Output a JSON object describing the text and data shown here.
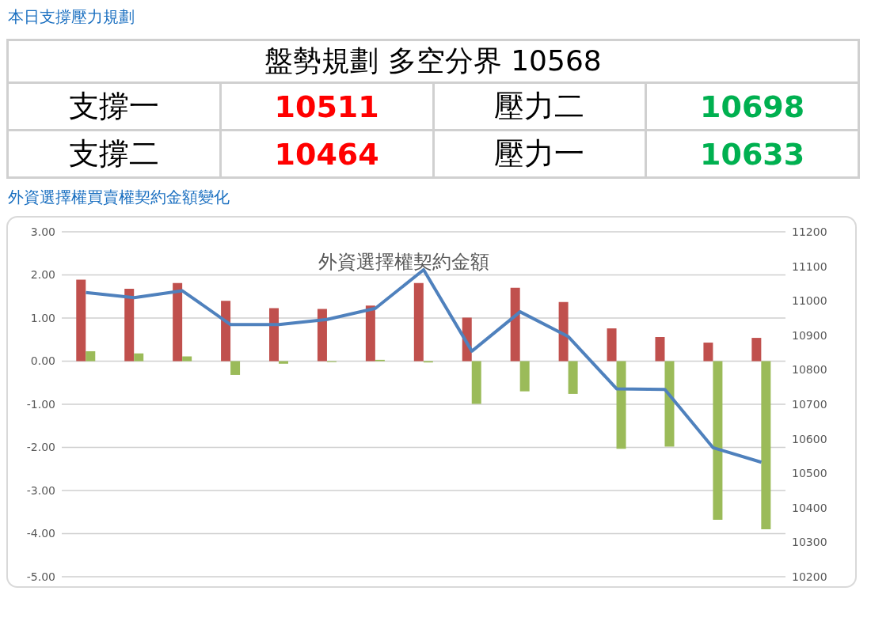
{
  "chart_data": [
    {
      "type": "other",
      "title": "本日支撐壓力規劃",
      "annotations": [
        "盤勢規劃 多空分界 10568",
        "支撐一",
        "10511",
        "壓力二",
        "10698",
        "支撐二",
        "10464",
        "壓力一",
        "10633"
      ]
    },
    {
      "type": "bar",
      "title": "外資選擇權買賣權契約金額變化",
      "subtitle": "外資選擇權契約金額",
      "categories": [
        null,
        null,
        null,
        null,
        null,
        null,
        null,
        null,
        null,
        null,
        null,
        null,
        null,
        null,
        null
      ],
      "series": [
        {
          "color": "#c0504d",
          "values": [
            1.89,
            1.68,
            1.81,
            1.4,
            1.23,
            1.21,
            1.29,
            1.81,
            1.01,
            1.7,
            1.37,
            0.76,
            0.56,
            0.43,
            0.54
          ]
        },
        {
          "color": "#9bbb59",
          "values": [
            0.23,
            0.18,
            0.11,
            -0.32,
            -0.06,
            -0.02,
            0.03,
            -0.03,
            -0.99,
            -0.7,
            -0.76,
            -2.03,
            -1.98,
            -3.68,
            -3.9
          ]
        },
        {
          "type": "line",
          "axis": "y2",
          "color": "#4f81bd",
          "values": [
            11024,
            11009,
            11029,
            10931,
            10931,
            10946,
            10978,
            11090,
            10854,
            10968,
            10896,
            10745,
            10743,
            10574,
            10532
          ]
        }
      ],
      "ylim": [
        -5,
        3
      ],
      "yticks": [
        {
          "value": 3,
          "label": "3.00"
        },
        {
          "value": 2,
          "label": "2.00"
        },
        {
          "value": 1,
          "label": "1.00"
        },
        {
          "value": 0,
          "label": "0.00"
        },
        {
          "value": -1,
          "label": "-1.00"
        },
        {
          "value": -2,
          "label": "-2.00"
        },
        {
          "value": -3,
          "label": "-3.00"
        },
        {
          "value": -4,
          "label": "-4.00"
        },
        {
          "value": -5,
          "label": "-5.00"
        }
      ],
      "y2lim": [
        10200,
        11200
      ],
      "y2ticks": [
        10200,
        10300,
        10400,
        10500,
        10600,
        10700,
        10800,
        10900,
        11000,
        11100,
        11200
      ],
      "grid": "y",
      "legend": false,
      "marker": "none"
    }
  ]
}
